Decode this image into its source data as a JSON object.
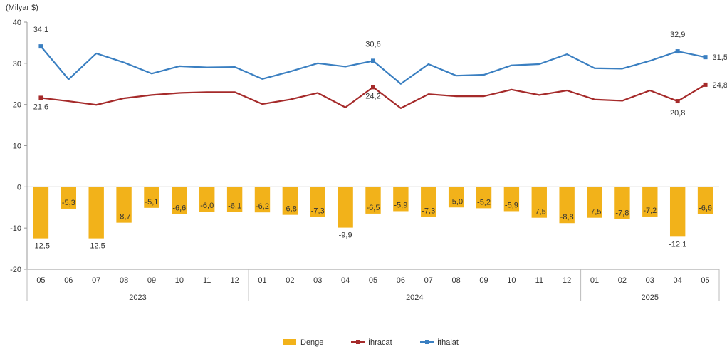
{
  "chart_data": {
    "type": "bar+line",
    "unit_label": "(Milyar $)",
    "ylim": [
      -20,
      40
    ],
    "yticks": [
      40,
      30,
      20,
      10,
      0,
      -10,
      -20
    ],
    "grid": false,
    "legend_position": "bottom",
    "months": [
      "05",
      "06",
      "07",
      "08",
      "09",
      "10",
      "11",
      "12",
      "01",
      "02",
      "03",
      "04",
      "05",
      "06",
      "07",
      "08",
      "09",
      "10",
      "11",
      "12",
      "01",
      "02",
      "03",
      "04",
      "05"
    ],
    "year_groups": [
      {
        "label": "2023",
        "start": 0,
        "end": 7
      },
      {
        "label": "2024",
        "start": 8,
        "end": 19
      },
      {
        "label": "2025",
        "start": 20,
        "end": 24
      }
    ],
    "series": [
      {
        "name": "Denge",
        "kind": "bar",
        "color": "#f2b21a",
        "values": [
          -12.5,
          -5.3,
          -12.5,
          -8.7,
          -5.1,
          -6.6,
          -6.0,
          -6.1,
          -6.2,
          -6.8,
          -7.3,
          -9.9,
          -6.5,
          -5.9,
          -7.3,
          -5.0,
          -5.2,
          -5.9,
          -7.5,
          -8.8,
          -7.5,
          -7.8,
          -7.2,
          -12.1,
          -6.6
        ],
        "labels": [
          "-12,5",
          "-5,3",
          "-12,5",
          "-8,7",
          "-5,1",
          "-6,6",
          "-6,0",
          "-6,1",
          "-6,2",
          "-6,8",
          "-7,3",
          "-9,9",
          "-6,5",
          "-5,9",
          "-7,3",
          "-5,0",
          "-5,2",
          "-5,9",
          "-7,5",
          "-8,8",
          "-7,5",
          "-7,8",
          "-7,2",
          "-12,1",
          "-6,6"
        ]
      },
      {
        "name": "İhracat",
        "kind": "line",
        "color": "#a52a2a",
        "values": [
          21.6,
          20.8,
          19.9,
          21.5,
          22.3,
          22.8,
          23.0,
          23.0,
          20.1,
          21.2,
          22.8,
          19.3,
          24.2,
          19.1,
          22.5,
          22.0,
          22.0,
          23.6,
          22.3,
          23.4,
          21.2,
          20.9,
          23.4,
          20.8,
          24.8
        ],
        "labels": [
          {
            "index": 0,
            "text": "21,6"
          },
          {
            "index": 12,
            "text": "24,2"
          },
          {
            "index": 23,
            "text": "20,8"
          },
          {
            "index": 24,
            "text": "24,8"
          }
        ],
        "markers": [
          0,
          12,
          23,
          24
        ]
      },
      {
        "name": "İthalat",
        "kind": "line",
        "color": "#3a7fc1",
        "values": [
          34.1,
          26.1,
          32.4,
          30.2,
          27.5,
          29.3,
          29.0,
          29.1,
          26.2,
          28.0,
          30.0,
          29.2,
          30.6,
          25.0,
          29.8,
          27.0,
          27.2,
          29.5,
          29.8,
          32.2,
          28.8,
          28.7,
          30.6,
          32.9,
          31.5
        ],
        "labels": [
          {
            "index": 0,
            "text": "34,1"
          },
          {
            "index": 12,
            "text": "30,6"
          },
          {
            "index": 23,
            "text": "32,9"
          },
          {
            "index": 24,
            "text": "31,5"
          }
        ],
        "markers": [
          0,
          12,
          23,
          24
        ]
      }
    ]
  }
}
